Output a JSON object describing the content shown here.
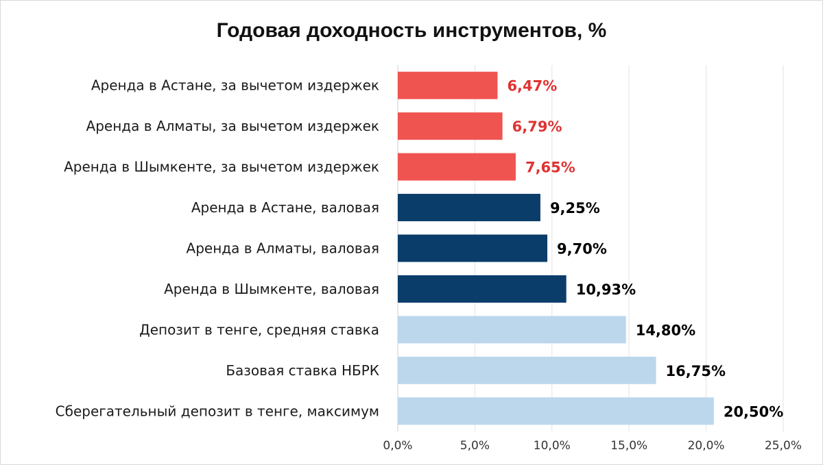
{
  "chart_data": {
    "type": "bar",
    "orientation": "horizontal",
    "title": "Годовая доходность инструментов, %",
    "categories": [
      "Аренда в Астане, за вычетом издержек",
      "Аренда в Алматы, за вычетом издержек",
      "Аренда в Шымкенте, за вычетом издержек",
      "Аренда в Астане, валовая",
      "Аренда в Алматы, валовая",
      "Аренда в Шымкенте, валовая",
      "Депозит в тенге, средняя ставка",
      "Базовая ставка НБРК",
      "Сберегательный депозит в тенге, максимум"
    ],
    "values": [
      6.47,
      6.79,
      7.65,
      9.25,
      9.7,
      10.93,
      14.8,
      16.75,
      20.5
    ],
    "value_labels": [
      "6,47%",
      "6,79%",
      "7,65%",
      "9,25%",
      "9,70%",
      "10,93%",
      "14,80%",
      "16,75%",
      "20,50%"
    ],
    "bar_colors": [
      "#f05451",
      "#f05451",
      "#f05451",
      "#0b3d6b",
      "#0b3d6b",
      "#0b3d6b",
      "#bcd7ec",
      "#bcd7ec",
      "#bcd7ec"
    ],
    "label_colors": [
      "#e03333",
      "#e03333",
      "#e03333",
      "#000000",
      "#000000",
      "#000000",
      "#000000",
      "#000000",
      "#000000"
    ],
    "xlim": [
      0,
      25
    ],
    "xticks": [
      0,
      5,
      10,
      15,
      20,
      25
    ],
    "xtick_labels": [
      "0,0%",
      "5,0%",
      "10,0%",
      "15,0%",
      "20,0%",
      "25,0%"
    ],
    "grid": true,
    "legend": "none"
  }
}
